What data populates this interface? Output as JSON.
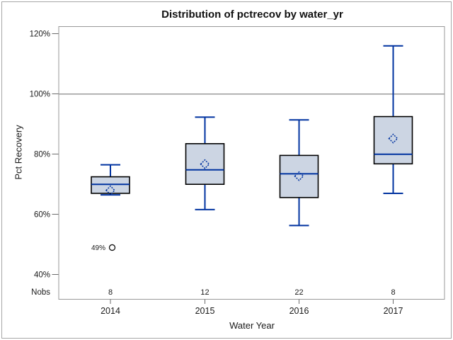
{
  "chart_data": {
    "type": "boxplot",
    "title": "Distribution of pctrecov by water_yr",
    "xlabel": "Water Year",
    "ylabel": "Pct Recovery",
    "ylim": [
      32,
      123
    ],
    "y_ticks": [
      {
        "value": 120,
        "label": "120%"
      },
      {
        "value": 100,
        "label": "100%"
      },
      {
        "value": 80,
        "label": "80%"
      },
      {
        "value": 60,
        "label": "60%"
      },
      {
        "value": 40,
        "label": "40%"
      }
    ],
    "reference_line": 100,
    "grid": "off",
    "legend": "none",
    "nobs_row_label": "Nobs",
    "categories": [
      "2014",
      "2015",
      "2016",
      "2017"
    ],
    "boxes": [
      {
        "category": "2014",
        "nobs": "8",
        "whisker_low": 66.5,
        "q1": 67.0,
        "median": 70.0,
        "q3": 72.5,
        "whisker_high": 76.5,
        "mean": 68.0,
        "outliers": [
          {
            "value": 49,
            "label": "49%"
          }
        ]
      },
      {
        "category": "2015",
        "nobs": "12",
        "whisker_low": 61.6,
        "q1": 70.0,
        "median": 74.8,
        "q3": 83.5,
        "whisker_high": 92.3,
        "mean": 76.7,
        "outliers": []
      },
      {
        "category": "2016",
        "nobs": "22",
        "whisker_low": 56.3,
        "q1": 65.6,
        "median": 73.5,
        "q3": 79.6,
        "whisker_high": 91.4,
        "mean": 72.7,
        "outliers": []
      },
      {
        "category": "2017",
        "nobs": "8",
        "whisker_low": 67.0,
        "q1": 76.8,
        "median": 80.0,
        "q3": 92.5,
        "whisker_high": 116.0,
        "mean": 85.2,
        "outliers": []
      }
    ]
  },
  "colors": {
    "box_fill": "#ccd5e3",
    "box_border": "#000000",
    "blue_line": "#0033a0",
    "frame": "#999999",
    "reference_line": "#9a9a9a",
    "tick": "#6b6b6b",
    "text": "#1a1a1a",
    "outlier": "#111111",
    "figure_border": "#a6a6a6"
  }
}
